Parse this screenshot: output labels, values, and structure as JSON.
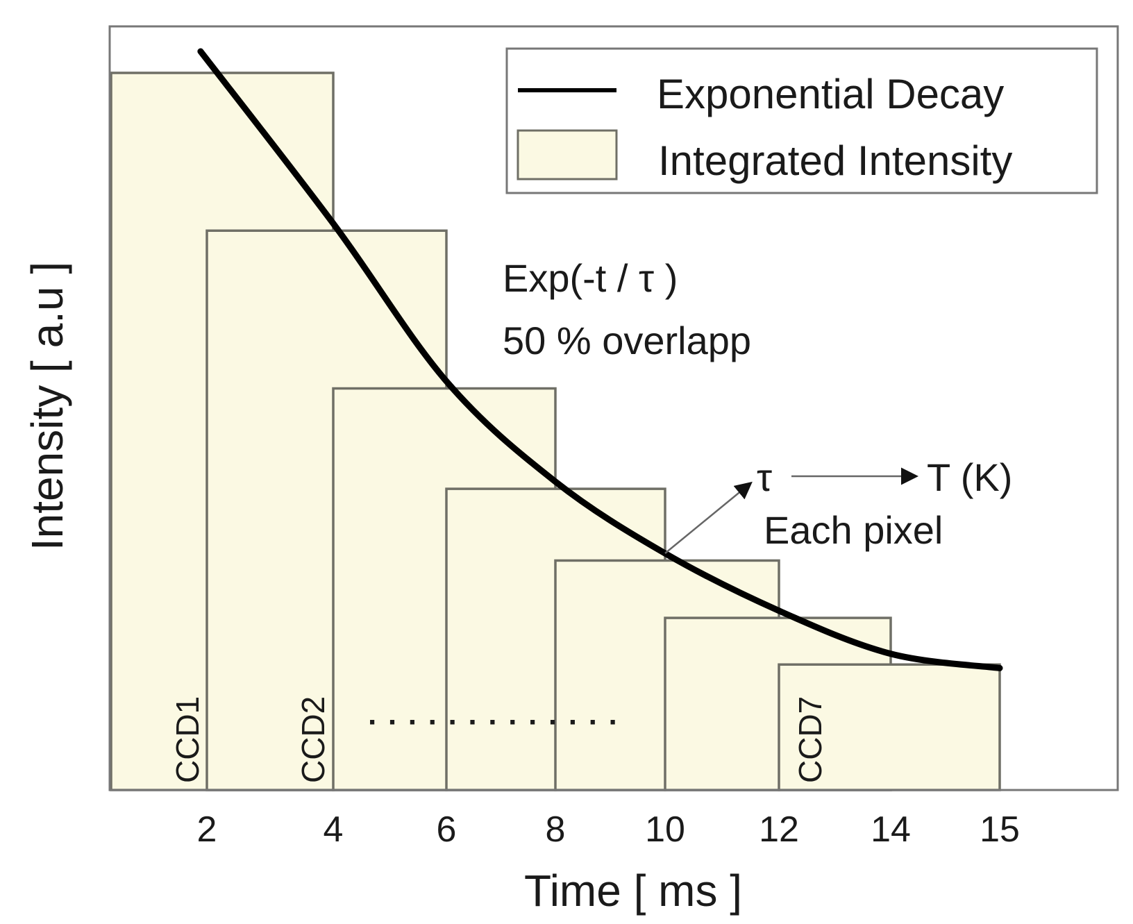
{
  "chart_data": {
    "type": "bar",
    "xlabel": "Time [ ms ]",
    "ylabel": "Intensity [ a.u ]",
    "x_ticks": [
      "2",
      "4",
      "6",
      "8",
      "10",
      "12",
      "14",
      "15"
    ],
    "legend": {
      "position": "top-right",
      "entries": [
        "Exponential Decay",
        "Integrated Intensity"
      ]
    },
    "series": [
      {
        "name": "Integrated Intensity",
        "kind": "gates",
        "gates": [
          {
            "start": "",
            "end": "4",
            "value": 1.0,
            "label": "CCD1"
          },
          {
            "start": "2",
            "end": "6",
            "value": 0.78,
            "label": "CCD2"
          },
          {
            "start": "4",
            "end": "8",
            "value": 0.56,
            "label": ""
          },
          {
            "start": "6",
            "end": "10",
            "value": 0.42,
            "label": ""
          },
          {
            "start": "8",
            "end": "12",
            "value": 0.32,
            "label": ""
          },
          {
            "start": "10",
            "end": "14",
            "value": 0.24,
            "label": ""
          },
          {
            "start": "12",
            "end": "15",
            "value": 0.175,
            "label": "CCD7"
          }
        ]
      },
      {
        "name": "Exponential Decay",
        "kind": "curve",
        "points": [
          {
            "x": 1.9,
            "y": 1.03
          },
          {
            "x": 4.0,
            "y": 0.79
          },
          {
            "x": 6.0,
            "y": 0.57
          },
          {
            "x": 8.0,
            "y": 0.43
          },
          {
            "x": 10.0,
            "y": 0.33
          },
          {
            "x": 12.0,
            "y": 0.25
          },
          {
            "x": 14.0,
            "y": 0.19
          },
          {
            "x": 15.0,
            "y": 0.17
          }
        ]
      }
    ],
    "annotations": {
      "formula": "Exp(-t / τ )",
      "overlap": "50 % overlapp",
      "tau": "τ",
      "temp": "T (K)",
      "pixel": "Each pixel",
      "dots": "· · · · · · · · · · · · ·"
    },
    "colors": {
      "fill": "#fbf9e3",
      "edge": "#6f6f66",
      "curve": "#000000",
      "frame": "#777777"
    }
  }
}
